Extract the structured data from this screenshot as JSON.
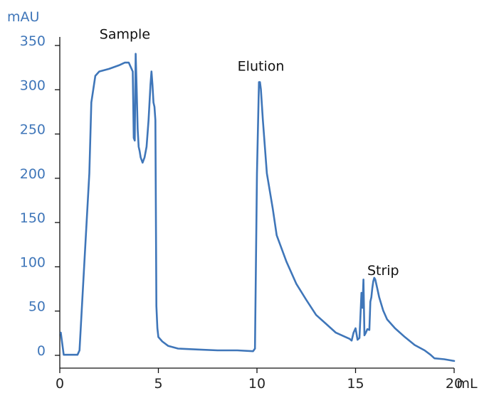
{
  "chart_data": {
    "type": "line",
    "title": "",
    "xlabel": "mL",
    "ylabel": "mAU",
    "xlim": [
      0,
      20
    ],
    "ylim": [
      0,
      350
    ],
    "x_ticks": [
      0,
      5,
      10,
      15,
      20
    ],
    "x_tick_labels": [
      "0",
      "5",
      "10",
      "15",
      "20"
    ],
    "y_ticks": [
      0,
      50,
      100,
      150,
      200,
      250,
      300,
      350
    ],
    "y_tick_labels": [
      "0",
      "50",
      "100",
      "150",
      "200",
      "250",
      "300",
      "350"
    ],
    "grid": false,
    "line_color": "#3f76b9",
    "axis_label_color": "#3f76b9",
    "annotations": [
      {
        "text": "Sample",
        "x": 3.3,
        "y": 352
      },
      {
        "text": "Elution",
        "x": 10.2,
        "y": 316
      },
      {
        "text": "Strip",
        "x": 16.4,
        "y": 85
      }
    ],
    "series": [
      {
        "x": [
          0.05,
          0.2,
          0.5,
          0.9,
          1.0,
          1.2,
          1.5,
          1.6,
          1.8,
          2.0,
          2.5,
          3.0,
          3.3,
          3.5,
          3.6,
          3.7,
          3.75,
          3.8,
          3.85,
          3.9,
          3.95,
          4.0,
          4.05,
          4.1,
          4.2,
          4.3,
          4.4,
          4.5,
          4.6,
          4.65,
          4.7,
          4.75,
          4.8,
          4.85,
          4.9,
          4.95,
          5.0,
          5.2,
          5.5,
          6.0,
          7.0,
          8.0,
          9.0,
          9.8,
          9.9,
          10.0,
          10.1,
          10.15,
          10.2,
          10.3,
          10.5,
          10.8,
          11.0,
          11.5,
          12.0,
          12.5,
          13.0,
          13.5,
          14.0,
          14.5,
          14.7,
          14.8,
          14.9,
          15.0,
          15.1,
          15.2,
          15.3,
          15.35,
          15.4,
          15.45,
          15.5,
          15.6,
          15.7,
          15.75,
          15.8,
          15.85,
          15.9,
          15.95,
          16.0,
          16.1,
          16.2,
          16.4,
          16.6,
          17.0,
          17.5,
          18.0,
          18.5,
          18.8,
          19.0,
          19.5,
          20.0
        ],
        "y": [
          20,
          -5,
          -5,
          -5,
          0,
          80,
          200,
          280,
          310,
          315,
          318,
          322,
          325,
          325,
          320,
          315,
          240,
          237,
          335,
          295,
          250,
          230,
          225,
          218,
          212,
          218,
          230,
          260,
          300,
          315,
          300,
          280,
          275,
          260,
          50,
          25,
          15,
          10,
          5,
          2,
          1,
          0,
          0,
          -1,
          2,
          200,
          303,
          303,
          295,
          260,
          200,
          160,
          130,
          100,
          75,
          57,
          40,
          30,
          20,
          15,
          13,
          11,
          20,
          25,
          12,
          14,
          65,
          48,
          80,
          17,
          19,
          24,
          23,
          55,
          60,
          70,
          78,
          82,
          80,
          70,
          60,
          45,
          35,
          25,
          15,
          6,
          0,
          -5,
          -9,
          -10,
          -12
        ]
      }
    ]
  }
}
